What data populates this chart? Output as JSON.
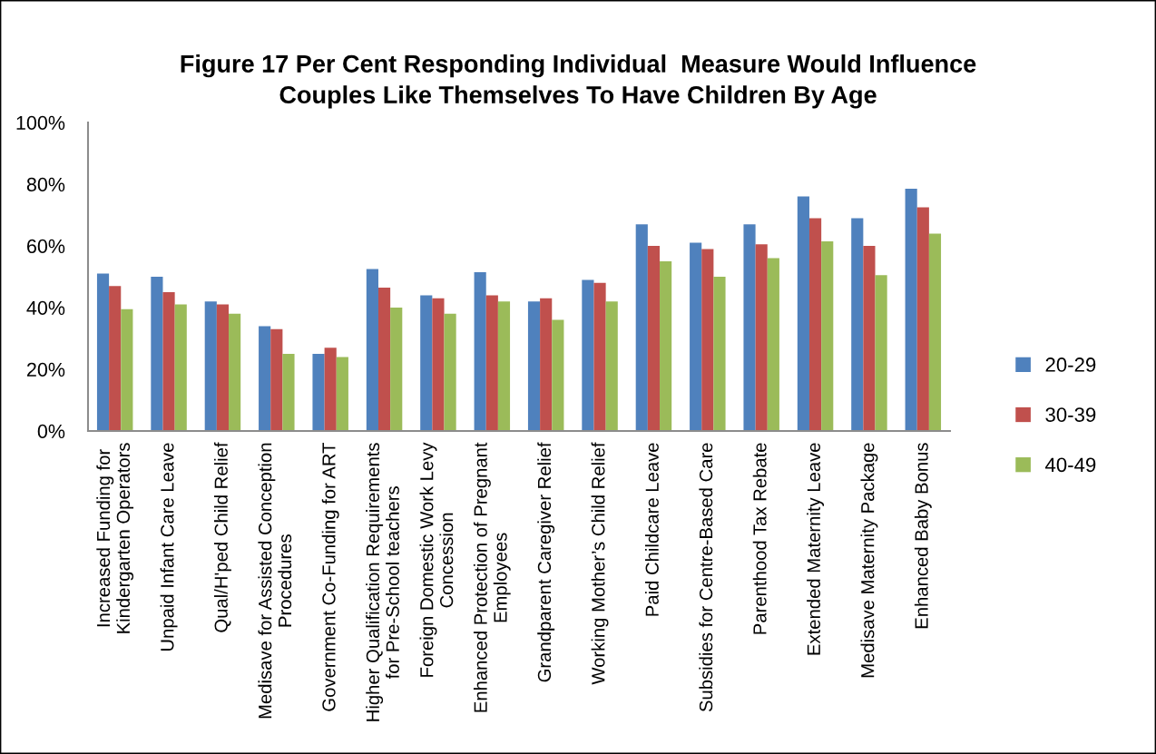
{
  "chart_data": {
    "type": "bar",
    "title": "Figure 17 Per Cent Responding Individual  Measure Would Influence\nCouples Like Themselves To Have Children By Age",
    "categories": [
      "Increased Funding for\nKindergarten Operators",
      "Unpaid Infant Care Leave",
      "Qual/H'ped Child Relief",
      "Medisave for Assisted Conception\nProcedures",
      "Government Co-Funding for ART",
      "Higher Qualification Requirements\nfor Pre-School teachers",
      "Foreign Domestic Work Levy\nConcession",
      "Enhanced Protection of Pregnant\nEmployees",
      "Grandparent Caregiver Relief",
      "Working Mother’s Child Relief",
      "Paid Childcare Leave",
      "Subsidies for Centre-Based Care",
      "Parenthood Tax Rebate",
      "Extended Maternity Leave",
      "Medisave Maternity Package",
      "Enhanced Baby Bonus"
    ],
    "series": [
      {
        "name": "20-29",
        "color": "#4f81bd",
        "values": [
          51,
          50,
          42,
          34,
          25,
          52.5,
          44,
          51.5,
          42,
          49,
          67,
          61,
          67,
          76,
          69,
          78.5
        ]
      },
      {
        "name": "30-39",
        "color": "#c0504d",
        "values": [
          47,
          45,
          41,
          33,
          27,
          46.5,
          43,
          44,
          43,
          48,
          60,
          59,
          60.5,
          69,
          60,
          72.5
        ]
      },
      {
        "name": "40-49",
        "color": "#9bbb59",
        "values": [
          39.5,
          41,
          38,
          25,
          24,
          40,
          38,
          42,
          36,
          42,
          55,
          50,
          56,
          61.5,
          50.5,
          64
        ]
      }
    ],
    "ylim": [
      0,
      100
    ],
    "yticks": [
      {
        "value": 0,
        "label": "0%"
      },
      {
        "value": 20,
        "label": "20%"
      },
      {
        "value": 40,
        "label": "40%"
      },
      {
        "value": 60,
        "label": "60%"
      },
      {
        "value": 80,
        "label": "80%"
      },
      {
        "value": 100,
        "label": "100%"
      }
    ],
    "grid": false,
    "legend": "right"
  }
}
